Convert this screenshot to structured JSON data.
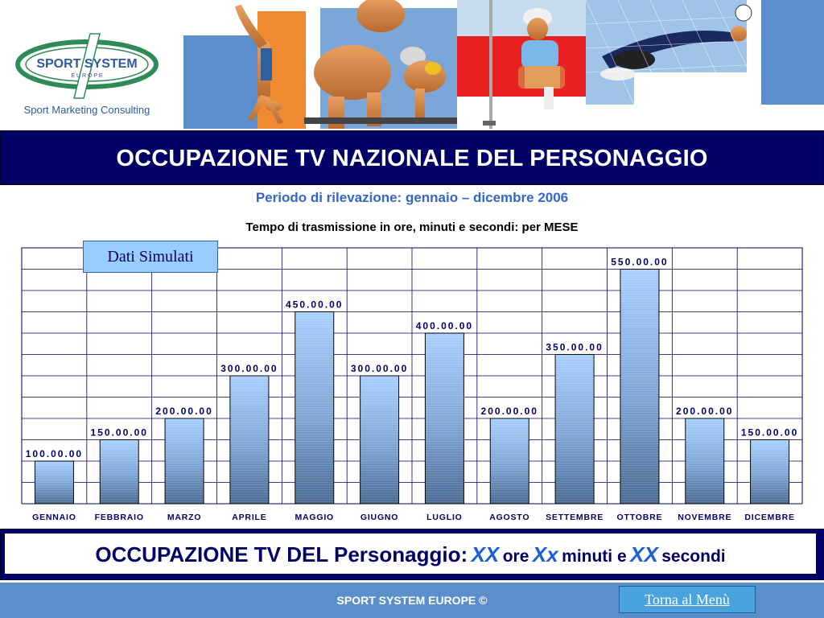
{
  "logo": {
    "brand": "SPORT SYSTEM",
    "sub": "E U R O P E",
    "tagline": "Sport Marketing Consulting"
  },
  "header": {
    "title": "OCCUPAZIONE TV NAZIONALE DEL PERSONAGGIO"
  },
  "period": "Periodo di rilevazione: gennaio – dicembre 2006",
  "badge": "Dati Simulati",
  "chart_data": {
    "type": "bar",
    "title": "Tempo di trasmissione in ore, minuti e secondi: per MESE",
    "categories": [
      "GENNAIO",
      "FEBBRAIO",
      "MARZO",
      "APRILE",
      "MAGGIO",
      "GIUGNO",
      "LUGLIO",
      "AGOSTO",
      "SETTEMBRE",
      "OTTOBRE",
      "NOVEMBRE",
      "DICEMBRE"
    ],
    "values": [
      100,
      150,
      200,
      300,
      450,
      300,
      400,
      200,
      350,
      550,
      200,
      150
    ],
    "labels": [
      "100.00.00",
      "150.00.00",
      "200.00.00",
      "300.00.00",
      "450.00.00",
      "300.00.00",
      "400.00.00",
      "200.00.00",
      "350.00.00",
      "550.00.00",
      "200.00.00",
      "150.00.00"
    ],
    "ylim": [
      0,
      600
    ],
    "grid": true,
    "colors": {
      "bar_top": "#a8d0ff",
      "bar_bottom": "#4a6a94",
      "label": "#000066",
      "grid": "#000066"
    }
  },
  "summary": {
    "lead": "OCCUPAZIONE TV DEL Personaggio:",
    "h": "XX",
    "h_unit": "ore",
    "m": "Xx",
    "m_unit": "minuti e",
    "s": "XX",
    "s_unit": "secondi"
  },
  "footer": {
    "copyright": "SPORT SYSTEM EUROPE ©",
    "menu_link": "Torna al Menù"
  }
}
